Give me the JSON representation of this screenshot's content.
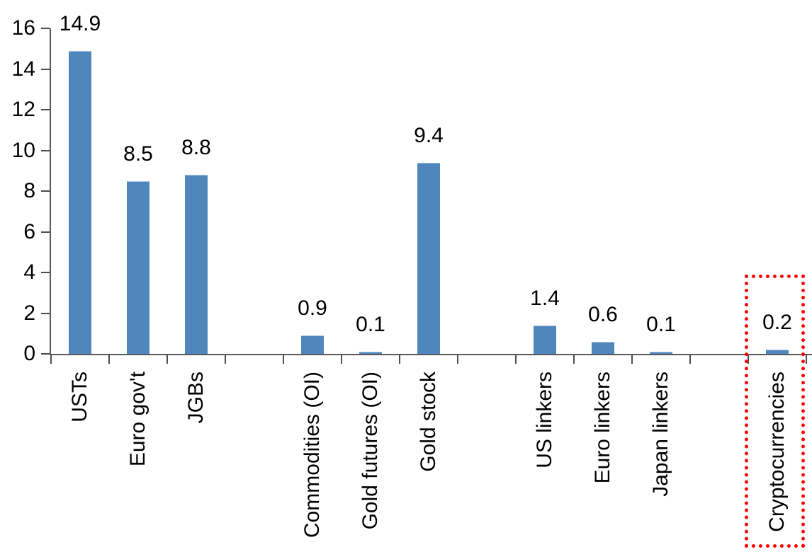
{
  "chart_data": {
    "type": "bar",
    "title": "",
    "xlabel": "",
    "ylabel": "",
    "ylim": [
      0,
      16
    ],
    "y_ticks": [
      0,
      2,
      4,
      6,
      8,
      10,
      12,
      14,
      16
    ],
    "grid": false,
    "legend": false,
    "categories": [
      "USTs",
      "Euro gov't",
      "JGBs",
      "",
      "Commodities (OI)",
      "Gold futures (OI)",
      "Gold stock",
      "",
      "US linkers",
      "Euro linkers",
      "Japan linkers",
      "",
      "Cryptocurrencies"
    ],
    "values": [
      14.9,
      8.5,
      8.8,
      null,
      0.9,
      0.1,
      9.4,
      null,
      1.4,
      0.6,
      0.1,
      null,
      0.2
    ],
    "data_labels": [
      "14.9",
      "8.5",
      "8.8",
      "",
      "0.9",
      "0.1",
      "9.4",
      "",
      "1.4",
      "0.6",
      "0.1",
      "",
      "0.2"
    ],
    "highlighted_category": "Cryptocurrencies",
    "colors": {
      "bar": "#4F86BC",
      "bar_top_edge": "#A9C6E0",
      "axis": "#595959",
      "tick": "#4d4d4d",
      "text": "#000000",
      "highlight_border": "#FF0000"
    }
  }
}
